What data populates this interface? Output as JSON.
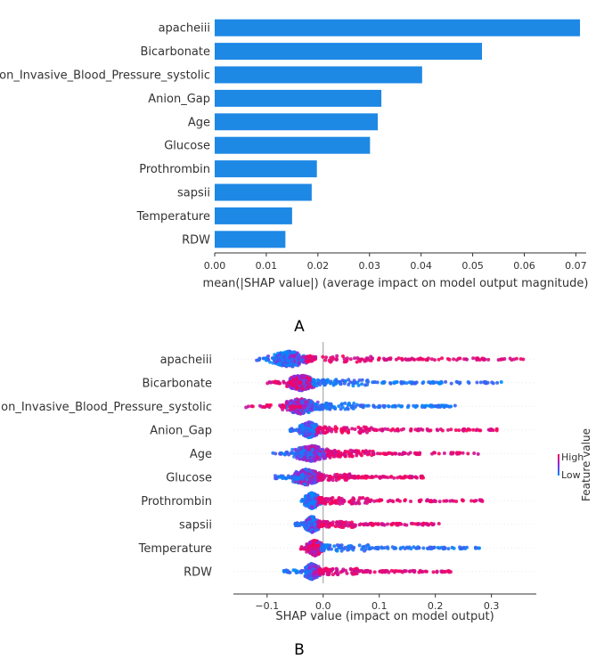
{
  "colors": {
    "bar": "#1e88e5",
    "high": "#ff0052",
    "low": "#008bfb",
    "axis": "#333333",
    "zero": "#999999"
  },
  "panels": {
    "a": "A",
    "b": "B"
  },
  "chart_data": [
    {
      "type": "bar",
      "orientation": "horizontal",
      "title": "",
      "categories": [
        "apacheiii",
        "Bicarbonate",
        "Non_Invasive_Blood_Pressure_systolic",
        "Anion_Gap",
        "Age",
        "Glucose",
        "Prothrombin",
        "sapsii",
        "Temperature",
        "RDW"
      ],
      "values": [
        0.0708,
        0.0518,
        0.0402,
        0.0323,
        0.0316,
        0.0301,
        0.0198,
        0.0188,
        0.015,
        0.0137
      ],
      "xlabel": "mean(|SHAP value|) (average impact on model output magnitude)",
      "ylabel": "",
      "xlim": [
        0,
        0.072
      ],
      "xticks": [
        0.0,
        0.01,
        0.02,
        0.03,
        0.04,
        0.05,
        0.06,
        0.07
      ],
      "xtick_labels": [
        "0.00",
        "0.01",
        "0.02",
        "0.03",
        "0.04",
        "0.05",
        "0.06",
        "0.07"
      ]
    },
    {
      "type": "scatter",
      "subtype": "shap-beeswarm",
      "categories": [
        "apacheiii",
        "Bicarbonate",
        "Non_Invasive_Blood_Pressure_systolic",
        "Anion_Gap",
        "Age",
        "Glucose",
        "Prothrombin",
        "sapsii",
        "Temperature",
        "RDW"
      ],
      "series": [
        {
          "name": "apacheiii",
          "min": -0.12,
          "max": 0.36,
          "mode": -0.06,
          "spread": 0.03,
          "low_side": "left"
        },
        {
          "name": "Bicarbonate",
          "min": -0.1,
          "max": 0.32,
          "mode": -0.04,
          "spread": 0.022,
          "low_side": "right"
        },
        {
          "name": "Non_Invasive_Blood_Pressure_systolic",
          "min": -0.14,
          "max": 0.24,
          "mode": -0.04,
          "spread": 0.025,
          "low_side": "right"
        },
        {
          "name": "Anion_Gap",
          "min": -0.06,
          "max": 0.31,
          "mode": -0.025,
          "spread": 0.015,
          "low_side": "left"
        },
        {
          "name": "Age",
          "min": -0.09,
          "max": 0.28,
          "mode": -0.02,
          "spread": 0.028,
          "low_side": "left"
        },
        {
          "name": "Glucose",
          "min": -0.09,
          "max": 0.18,
          "mode": -0.03,
          "spread": 0.022,
          "low_side": "left"
        },
        {
          "name": "Prothrombin",
          "min": -0.04,
          "max": 0.29,
          "mode": -0.02,
          "spread": 0.012,
          "low_side": "left"
        },
        {
          "name": "sapsii",
          "min": -0.05,
          "max": 0.21,
          "mode": -0.02,
          "spread": 0.012,
          "low_side": "left"
        },
        {
          "name": "Temperature",
          "min": -0.04,
          "max": 0.28,
          "mode": -0.015,
          "spread": 0.012,
          "low_side": "right"
        },
        {
          "name": "RDW",
          "min": -0.07,
          "max": 0.23,
          "mode": -0.02,
          "spread": 0.012,
          "low_side": "left"
        }
      ],
      "xlabel": "SHAP value (impact on model output)",
      "xlim": [
        -0.16,
        0.38
      ],
      "xticks": [
        -0.1,
        0.0,
        0.1,
        0.2,
        0.3
      ],
      "xtick_labels": [
        "−0.1",
        "0.0",
        "0.1",
        "0.2",
        "0.3"
      ],
      "colorbar": {
        "title": "Feature value",
        "high": "High",
        "low": "Low"
      }
    }
  ]
}
